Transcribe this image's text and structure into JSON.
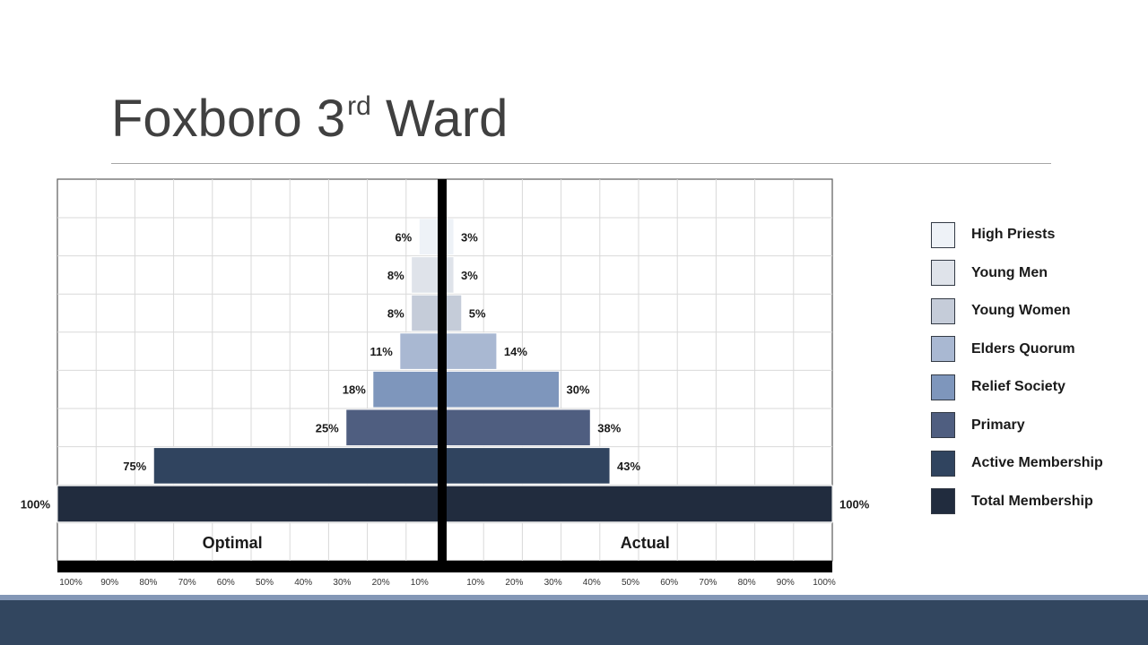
{
  "slide": {
    "title": "Foxboro 3",
    "title_sup": "rd",
    "title_rest": " Ward"
  },
  "chart_data": {
    "type": "bar",
    "orientation": "horizontal-butterfly",
    "categories": [
      "High Priests",
      "Young Men",
      "Young Women",
      "Elders Quorum",
      "Relief Society",
      "Primary",
      "Active Membership",
      "Total Membership"
    ],
    "series": [
      {
        "name": "Optimal",
        "values": [
          6,
          8,
          8,
          11,
          18,
          25,
          75,
          100
        ]
      },
      {
        "name": "Actual",
        "values": [
          3,
          3,
          5,
          14,
          30,
          38,
          43,
          100
        ]
      }
    ],
    "value_labels": {
      "Optimal": [
        "6%",
        "8%",
        "8%",
        "11%",
        "18%",
        "25%",
        "75%",
        "100%"
      ],
      "Actual": [
        "3%",
        "3%",
        "5%",
        "14%",
        "30%",
        "38%",
        "43%",
        "100%"
      ]
    },
    "colors": [
      "#eef2f7",
      "#dfe3ea",
      "#c5ccd9",
      "#a9b8d2",
      "#7e96bc",
      "#4f5e80",
      "#30445f",
      "#212c3e"
    ],
    "x_ticks_left": [
      "100%",
      "90%",
      "80%",
      "70%",
      "60%",
      "50%",
      "40%",
      "30%",
      "20%",
      "10%"
    ],
    "x_ticks_right": [
      "10%",
      "20%",
      "30%",
      "40%",
      "50%",
      "60%",
      "70%",
      "80%",
      "90%",
      "100%"
    ],
    "xlim": [
      0,
      100
    ],
    "grid": true,
    "legend_position": "right"
  }
}
